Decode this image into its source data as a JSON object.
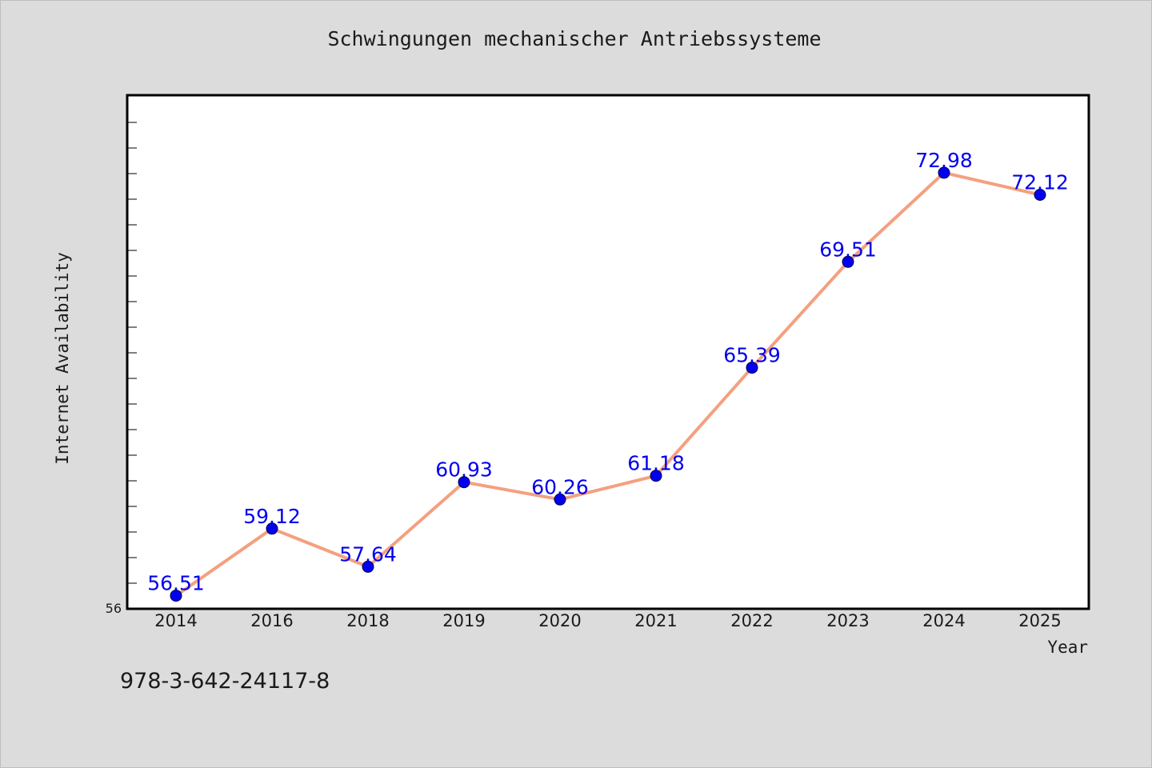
{
  "chart_data": {
    "type": "line",
    "title": "Schwingungen mechanischer Antriebssysteme",
    "xlabel": "Year",
    "ylabel": "Internet Availability",
    "categories": [
      "2014",
      "2016",
      "2018",
      "2019",
      "2020",
      "2021",
      "2022",
      "2023",
      "2024",
      "2025"
    ],
    "series": [
      {
        "values": [
          56.51,
          59.12,
          57.64,
          60.93,
          60.26,
          61.18,
          65.39,
          69.51,
          72.98,
          72.12
        ]
      }
    ],
    "data_labels": [
      "56.51",
      "59.12",
      "57.64",
      "60.93",
      "60.26",
      "61.18",
      "65.39",
      "69.51",
      "72.98",
      "72.12"
    ],
    "y_tick_label": "56",
    "ylim": [
      56,
      76
    ],
    "grid": false,
    "legend": "none",
    "colors": {
      "line": "#f4a07f",
      "marker": "#0000ee",
      "label": "#0000ee",
      "plot_background": "#ffffff",
      "page_background": "#dcdcdc"
    }
  },
  "footer": {
    "isbn": "978-3-642-24117-8"
  }
}
